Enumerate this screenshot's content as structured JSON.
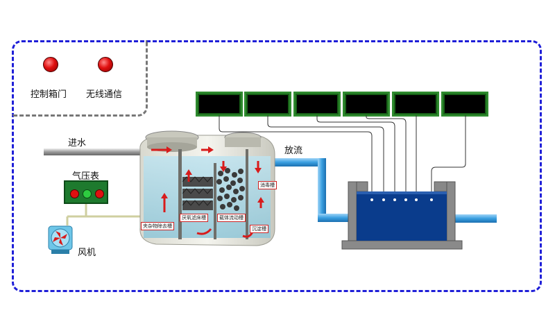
{
  "status": {
    "door_label": "控制箱门",
    "wireless_label": "无线通信"
  },
  "labels": {
    "inlet": "进水",
    "gauge": "气压表",
    "blower": "风机",
    "outlet": "放流"
  },
  "chambers": [
    "夹杂物除去槽",
    "厌氧滤床槽",
    "载体流动槽",
    "沉淀槽",
    "消毒槽"
  ],
  "colors": {
    "frame": "#1f1fd8",
    "display_border": "#2e8a2e",
    "water_tank": "#0a3c8c",
    "pipe": "#3a9fe0",
    "arrow": "#d81b1b"
  },
  "icons": {
    "blower": "fan-icon",
    "led": "red-led-icon"
  }
}
